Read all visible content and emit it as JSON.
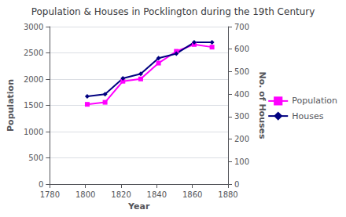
{
  "chart_data": {
    "type": "line",
    "title": "Population & Houses in Pocklington during the 19th Century",
    "xlabel": "Year",
    "ylabel": "Population",
    "y2label": "No. of Houses",
    "x": [
      1801,
      1811,
      1821,
      1831,
      1841,
      1851,
      1861,
      1871
    ],
    "series": [
      {
        "name": "Population",
        "color": "#FF00FF",
        "marker": "square",
        "values": [
          1520,
          1558,
          1960,
          2003,
          2305,
          2530,
          2660,
          2610
        ]
      },
      {
        "name": "Houses",
        "color": "#000080",
        "marker": "diamond",
        "axis": "y2",
        "values": [
          390,
          400,
          470,
          490,
          560,
          580,
          630,
          630
        ]
      }
    ],
    "xlim": [
      1780,
      1880
    ],
    "xticks": [
      1780,
      1800,
      1820,
      1840,
      1860,
      1880
    ],
    "ylim": [
      0,
      3000
    ],
    "yticks": [
      0,
      500,
      1000,
      1500,
      2000,
      2500,
      3000
    ],
    "y2lim": [
      0,
      700
    ],
    "y2ticks": [
      0,
      100,
      200,
      300,
      400,
      500,
      600,
      700
    ],
    "grid": true,
    "legend": "right"
  }
}
